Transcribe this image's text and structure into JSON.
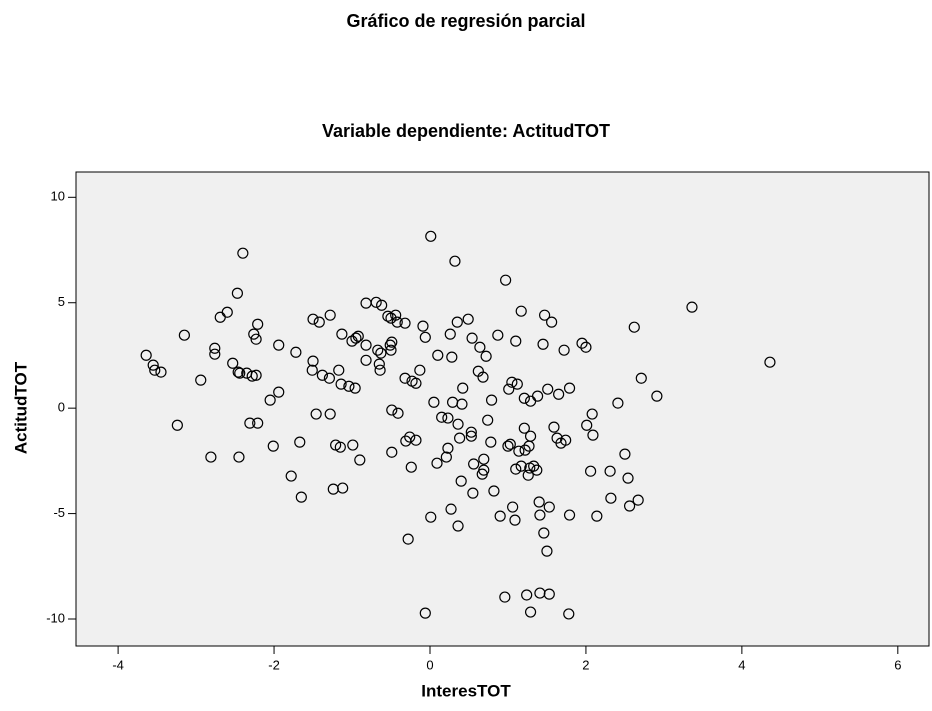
{
  "chart_data": {
    "type": "scatter",
    "title": "Gráfico de regresión parcial",
    "subtitle": "Variable dependiente: ActitudTOT",
    "x_label": "InteresTOT",
    "y_label": "ActitudTOT",
    "x": [
      -3.64,
      -3.55,
      -3.53,
      -3.45,
      -3.15,
      -3.24,
      -2.94,
      -2.76,
      -2.76,
      -2.69,
      -2.6,
      -2.81,
      -2.47,
      -2.4,
      -2.53,
      -2.46,
      -2.44,
      -2.35,
      -2.28,
      -2.23,
      -2.26,
      -2.23,
      -2.21,
      -2.31,
      -2.21,
      -2.45,
      -2.05,
      -1.94,
      -1.94,
      -2.01,
      -1.78,
      -1.72,
      -1.67,
      -1.65,
      -1.51,
      -1.5,
      -1.5,
      -1.42,
      -1.46,
      -1.38,
      -1.29,
      -1.28,
      -1.28,
      -1.24,
      -1.21,
      -1.15,
      -1.12,
      -1.17,
      -1.14,
      -1.13,
      -1.04,
      -1.0,
      -0.95,
      -0.92,
      -0.96,
      -0.99,
      -0.9,
      -0.82,
      -0.82,
      -0.82,
      -0.69,
      -0.62,
      -0.67,
      -0.63,
      -0.64,
      -0.65,
      -0.54,
      -0.51,
      -0.5,
      -0.49,
      -0.5,
      -0.44,
      -0.42,
      -0.49,
      -0.41,
      -0.32,
      -0.49,
      -0.32,
      -0.31,
      -0.26,
      -0.24,
      -0.23,
      -0.28,
      -0.18,
      -0.18,
      -0.13,
      -0.09,
      -0.06,
      -0.06,
      0.01,
      0.01,
      0.05,
      0.1,
      0.09,
      0.15,
      0.21,
      0.23,
      0.23,
      0.27,
      0.26,
      0.28,
      0.29,
      0.32,
      0.35,
      0.36,
      0.38,
      0.4,
      0.36,
      0.42,
      0.41,
      0.49,
      0.53,
      0.54,
      0.53,
      0.55,
      0.56,
      0.62,
      0.64,
      0.68,
      0.69,
      0.67,
      0.69,
      0.72,
      0.74,
      0.78,
      0.79,
      0.82,
      0.87,
      0.9,
      0.96,
      0.97,
      1.01,
      1.0,
      1.03,
      1.05,
      1.06,
      1.09,
      1.1,
      1.1,
      1.12,
      1.14,
      1.17,
      1.17,
      1.21,
      1.21,
      1.22,
      1.26,
      1.24,
      1.27,
      1.28,
      1.29,
      1.29,
      1.29,
      1.33,
      1.37,
      1.38,
      1.4,
      1.41,
      1.41,
      1.45,
      1.46,
      1.47,
      1.5,
      1.51,
      1.53,
      1.53,
      1.56,
      1.59,
      1.63,
      1.65,
      1.68,
      1.72,
      1.74,
      1.78,
      1.79,
      1.79,
      1.95,
      2.0,
      2.01,
      2.06,
      2.08,
      2.09,
      2.14,
      2.31,
      2.32,
      2.41,
      2.5,
      2.54,
      2.56,
      2.62,
      2.67,
      2.71,
      2.91,
      3.36,
      4.36
    ],
    "values": [
      2.51,
      2.04,
      1.8,
      1.71,
      3.46,
      -0.81,
      1.33,
      2.84,
      2.56,
      4.31,
      4.55,
      -2.32,
      5.45,
      7.35,
      2.13,
      1.71,
      1.66,
      1.66,
      1.52,
      1.56,
      3.51,
      3.27,
      3.98,
      -0.71,
      -0.71,
      -2.32,
      0.38,
      0.76,
      2.99,
      -1.8,
      -3.22,
      2.65,
      -1.61,
      -4.22,
      1.8,
      2.23,
      4.22,
      4.08,
      -0.28,
      1.56,
      1.42,
      4.41,
      -0.28,
      -3.84,
      -1.75,
      -1.85,
      -3.79,
      1.8,
      1.14,
      3.51,
      1.04,
      3.18,
      3.32,
      3.41,
      0.95,
      -1.75,
      -2.46,
      2.99,
      4.98,
      2.27,
      5.02,
      4.88,
      2.75,
      2.61,
      1.8,
      2.09,
      4.36,
      2.99,
      4.27,
      3.13,
      2.75,
      4.41,
      4.08,
      -0.09,
      -0.24,
      4.03,
      -2.09,
      1.42,
      -1.56,
      -1.37,
      -2.8,
      1.28,
      -6.21,
      1.18,
      -1.52,
      1.8,
      3.89,
      3.36,
      -9.72,
      -5.17,
      8.15,
      0.28,
      2.51,
      -2.61,
      -0.43,
      -2.32,
      -0.47,
      -1.9,
      -4.79,
      3.51,
      2.42,
      0.28,
      6.97,
      4.08,
      -0.76,
      -1.42,
      -3.46,
      -5.59,
      0.95,
      0.19,
      4.22,
      -1.14,
      3.32,
      -1.33,
      -4.03,
      -2.65,
      1.75,
      2.89,
      1.47,
      -2.42,
      -3.13,
      -2.94,
      2.46,
      -0.57,
      -1.61,
      0.38,
      -3.93,
      3.46,
      -5.12,
      -8.96,
      6.07,
      0.9,
      -1.8,
      -1.71,
      1.23,
      -4.69,
      -5.31,
      3.18,
      -2.89,
      1.14,
      -2.04,
      4.6,
      -2.75,
      -0.95,
      0.47,
      -1.99,
      -3.18,
      -8.86,
      -1.8,
      -2.84,
      0.33,
      -9.67,
      -1.33,
      -2.75,
      -2.94,
      0.57,
      -4.45,
      -5.07,
      -8.77,
      3.03,
      -5.92,
      4.41,
      -6.78,
      0.9,
      -4.69,
      -8.82,
      4.08,
      -0.9,
      -1.42,
      0.66,
      -1.66,
      2.75,
      -1.52,
      -9.76,
      0.95,
      -5.07,
      3.08,
      2.89,
      -0.81,
      -2.99,
      -0.28,
      -1.28,
      -5.12,
      -2.99,
      -4.27,
      0.24,
      -2.18,
      -3.32,
      -4.64,
      3.84,
      -4.36,
      1.42,
      0.57,
      4.79,
      2.18
    ],
    "xlim": [
      -4.54,
      6.4
    ],
    "ylim": [
      -11.28,
      11.2
    ],
    "xticks": [
      -4,
      -2,
      0,
      2,
      4,
      6
    ],
    "yticks": [
      -10,
      -5,
      0,
      5,
      10
    ],
    "plot_background": "#f0f0f0",
    "marker_color": "#000000"
  }
}
